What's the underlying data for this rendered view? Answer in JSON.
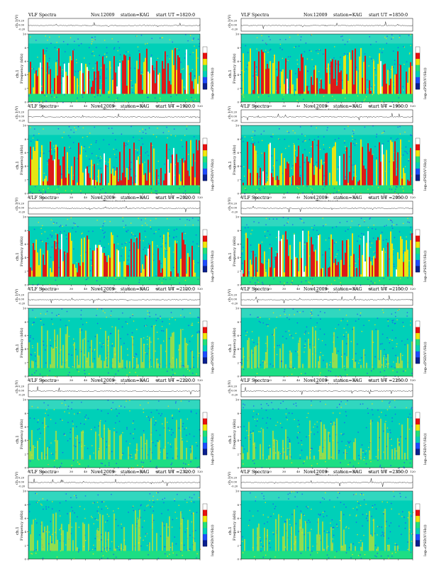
{
  "chart_data": [
    {
      "type": "heatmap",
      "title": "VLF Spectra",
      "date": "Nov.12009",
      "station": "station=KAG",
      "start": "start  UT  =1820:0",
      "activity": 1.0,
      "seed": 11
    },
    {
      "type": "heatmap",
      "title": "VLF Spectra",
      "date": "Nov.12009",
      "station": "station=KAG",
      "start": "start  UT  =1850:0",
      "activity": 1.0,
      "seed": 23
    },
    {
      "type": "heatmap",
      "title": "VLF Spectra",
      "date": "Nov.12009",
      "station": "station=KAG",
      "start": "start  UT  =1920:0",
      "activity": 1.0,
      "seed": 37
    },
    {
      "type": "heatmap",
      "title": "VLF Spectra",
      "date": "Nov.12009",
      "station": "station=KAG",
      "start": "start  UT  =1950:0",
      "activity": 1.0,
      "seed": 41
    },
    {
      "type": "heatmap",
      "title": "VLF Spectra",
      "date": "Nov.12009",
      "station": "station=KAG",
      "start": "start  UT  =2020:0",
      "activity": 1.0,
      "seed": 53
    },
    {
      "type": "heatmap",
      "title": "VLF Spectra",
      "date": "Nov.12009",
      "station": "station=KAG",
      "start": "start  UT  =2050:0",
      "activity": 1.0,
      "seed": 67
    },
    {
      "type": "heatmap",
      "title": "VLF Spectra",
      "date": "Nov.12009",
      "station": "station=KAG",
      "start": "start  UT  =2120:0",
      "activity": 0.45,
      "seed": 71
    },
    {
      "type": "heatmap",
      "title": "VLF Spectra",
      "date": "Nov.12009",
      "station": "station=KAG",
      "start": "start  UT  =2150:0",
      "activity": 0.4,
      "seed": 83
    },
    {
      "type": "heatmap",
      "title": "VLF Spectra",
      "date": "Nov.12009",
      "station": "station=KAG",
      "start": "start  UT  =2220:0",
      "activity": 0.25,
      "seed": 97
    },
    {
      "type": "heatmap",
      "title": "VLF Spectra",
      "date": "Nov.12009",
      "station": "station=KAG",
      "start": "start  UT  =2250:0",
      "activity": 0.25,
      "seed": 101
    },
    {
      "type": "heatmap",
      "title": "VLF Spectra",
      "date": "Nov.12009",
      "station": "station=KAG",
      "start": "start  UT  =2320:0",
      "activity": 0.2,
      "seed": 113
    },
    {
      "type": "heatmap",
      "title": "VLF Spectra",
      "date": "Nov.12009",
      "station": "station=KAG",
      "start": "start  UT  =2350:0",
      "activity": 0.2,
      "seed": 127
    }
  ],
  "axes": {
    "waveform_ylabel": "ch.1(V)",
    "waveform_ticks": [
      "0.20",
      "0.00",
      "-0.20"
    ],
    "freq_ylabel": "Frequency  (kHz)",
    "channel_label": "ch.1",
    "freq_ticks": [
      "0",
      "2",
      "4",
      "6",
      "8",
      "10"
    ],
    "freq_range": [
      0,
      10
    ],
    "time_xlabel": "Time  (sec)",
    "time_ticks": [
      "0",
      "10",
      "20",
      "30",
      "40",
      "50",
      "60",
      "70",
      "80",
      "90",
      "100",
      "110",
      "120"
    ],
    "time_range": [
      0,
      120
    ],
    "colorbar_label": "log₁₀(PSD(V²/Hz))"
  },
  "colors": {
    "background": "#00d0b8",
    "low": "#1e4cff",
    "mid": "#f2e60a",
    "high": "#e81010",
    "peak": "#ffffff",
    "lowband": "#22e07a"
  }
}
